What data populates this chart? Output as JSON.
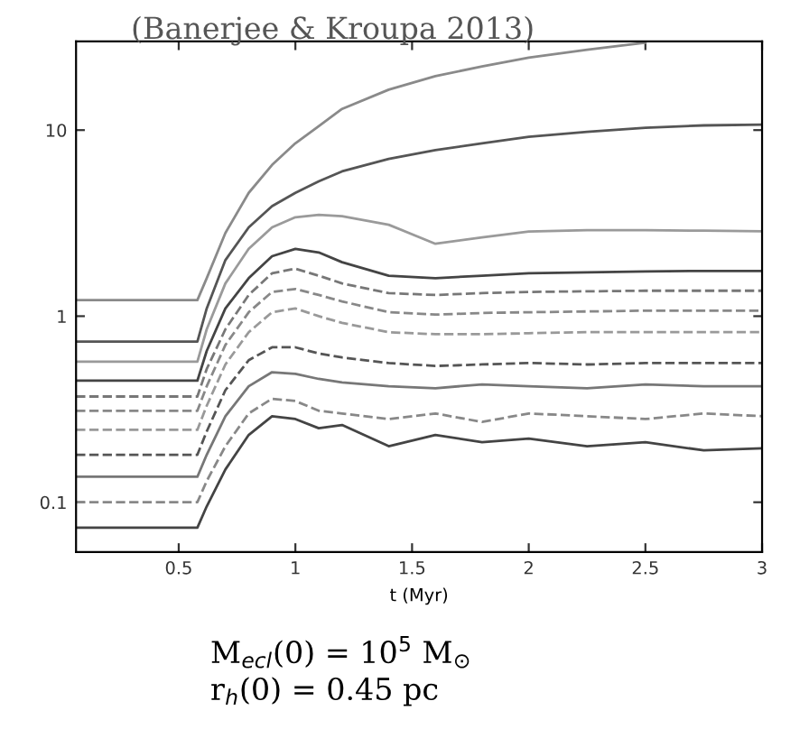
{
  "chart_data": {
    "type": "line",
    "title": "(Banerjee & Kroupa 2013)",
    "xlabel": "t (Myr)",
    "annotations": [
      "M$_{ecl}$(0) = 10$^{5}$ M$_{⊙}$",
      "r$_{h}$(0) = 0.45 pc"
    ],
    "x": [
      0.06,
      0.3,
      0.58,
      0.62,
      0.7,
      0.8,
      0.9,
      1.0,
      1.1,
      1.2,
      1.4,
      1.6,
      1.8,
      2.0,
      2.25,
      2.5,
      2.75,
      3.0
    ],
    "series": [
      {
        "color": "#8a8a8a",
        "line_style": "solid",
        "values": [
          1.22,
          1.22,
          1.22,
          1.6,
          2.8,
          4.6,
          6.5,
          8.5,
          10.5,
          13,
          16.5,
          19.5,
          22,
          24.5,
          27,
          29.5,
          null,
          null
        ]
      },
      {
        "color": "#555555",
        "line_style": "solid",
        "values": [
          0.73,
          0.73,
          0.73,
          1.1,
          2.0,
          3.0,
          3.9,
          4.6,
          5.3,
          6.0,
          7.0,
          7.8,
          8.5,
          9.2,
          9.8,
          10.3,
          10.6,
          10.7
        ]
      },
      {
        "color": "#9a9a9a",
        "line_style": "solid",
        "values": [
          0.57,
          0.57,
          0.57,
          0.85,
          1.5,
          2.3,
          3.0,
          3.4,
          3.5,
          3.45,
          3.1,
          2.45,
          2.65,
          2.85,
          2.9,
          2.9,
          2.88,
          2.86
        ]
      },
      {
        "color": "#444444",
        "line_style": "solid",
        "values": [
          0.45,
          0.45,
          0.45,
          0.65,
          1.1,
          1.6,
          2.1,
          2.3,
          2.2,
          1.95,
          1.65,
          1.6,
          1.65,
          1.7,
          1.72,
          1.74,
          1.75,
          1.75
        ]
      },
      {
        "color": "#777777",
        "line_style": "dashed",
        "values": [
          0.37,
          0.37,
          0.37,
          0.52,
          0.85,
          1.3,
          1.7,
          1.8,
          1.65,
          1.5,
          1.33,
          1.3,
          1.33,
          1.35,
          1.36,
          1.37,
          1.37,
          1.37
        ]
      },
      {
        "color": "#888888",
        "line_style": "dashed",
        "values": [
          0.31,
          0.31,
          0.31,
          0.42,
          0.7,
          1.05,
          1.35,
          1.4,
          1.3,
          1.2,
          1.05,
          1.02,
          1.04,
          1.05,
          1.06,
          1.07,
          1.07,
          1.07
        ]
      },
      {
        "color": "#999999",
        "line_style": "dashed",
        "values": [
          0.245,
          0.245,
          0.245,
          0.33,
          0.55,
          0.82,
          1.05,
          1.1,
          1.0,
          0.92,
          0.82,
          0.8,
          0.8,
          0.81,
          0.82,
          0.82,
          0.82,
          0.82
        ]
      },
      {
        "color": "#555555",
        "line_style": "dashed",
        "values": [
          0.18,
          0.18,
          0.18,
          0.24,
          0.4,
          0.58,
          0.68,
          0.68,
          0.63,
          0.6,
          0.56,
          0.54,
          0.55,
          0.56,
          0.55,
          0.56,
          0.56,
          0.56
        ]
      },
      {
        "color": "#777777",
        "line_style": "solid",
        "values": [
          0.137,
          0.137,
          0.137,
          0.18,
          0.29,
          0.42,
          0.5,
          0.49,
          0.46,
          0.44,
          0.42,
          0.41,
          0.43,
          0.42,
          0.41,
          0.43,
          0.42,
          0.42
        ]
      },
      {
        "color": "#888888",
        "line_style": "dashed",
        "values": [
          0.1,
          0.1,
          0.1,
          0.13,
          0.2,
          0.3,
          0.36,
          0.35,
          0.31,
          0.3,
          0.28,
          0.3,
          0.27,
          0.3,
          0.29,
          0.28,
          0.3,
          0.29
        ]
      },
      {
        "color": "#444444",
        "line_style": "solid",
        "values": [
          0.073,
          0.073,
          0.073,
          0.095,
          0.15,
          0.23,
          0.29,
          0.28,
          0.25,
          0.26,
          0.2,
          0.23,
          0.21,
          0.22,
          0.2,
          0.21,
          0.19,
          0.195
        ]
      }
    ],
    "log": "y",
    "xlim": [
      0.06,
      3
    ],
    "ylim": [
      0.054,
      30
    ],
    "xticks": [
      0.5,
      1,
      1.5,
      2,
      2.5,
      3
    ],
    "yticks": [
      0.1,
      1,
      10
    ],
    "grid": false,
    "legend": false,
    "marker": "none"
  }
}
